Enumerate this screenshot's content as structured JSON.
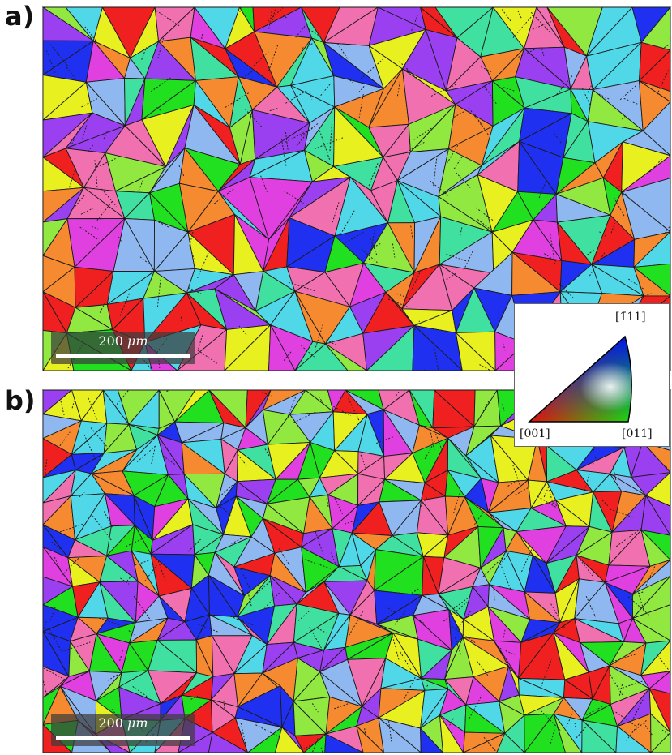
{
  "panels": {
    "a": {
      "label": "a)"
    },
    "b": {
      "label": "b)"
    }
  },
  "scalebar": {
    "value": "200",
    "unit": "μm"
  },
  "legend": {
    "top_label": "[1̄11]",
    "left_label": "[001]",
    "right_label": "[011]"
  },
  "colors": {
    "red": "#f02020",
    "green": "#20e020",
    "blue": "#2030f0",
    "orange": "#f58a30",
    "magenta": "#e040e0",
    "cyan": "#50d8e8",
    "yellow": "#e8f020",
    "lightblue": "#90b8f0",
    "pink": "#f070b0",
    "purple": "#9a40f0",
    "limegreen": "#90e840",
    "tealgreen": "#40e0a0"
  }
}
